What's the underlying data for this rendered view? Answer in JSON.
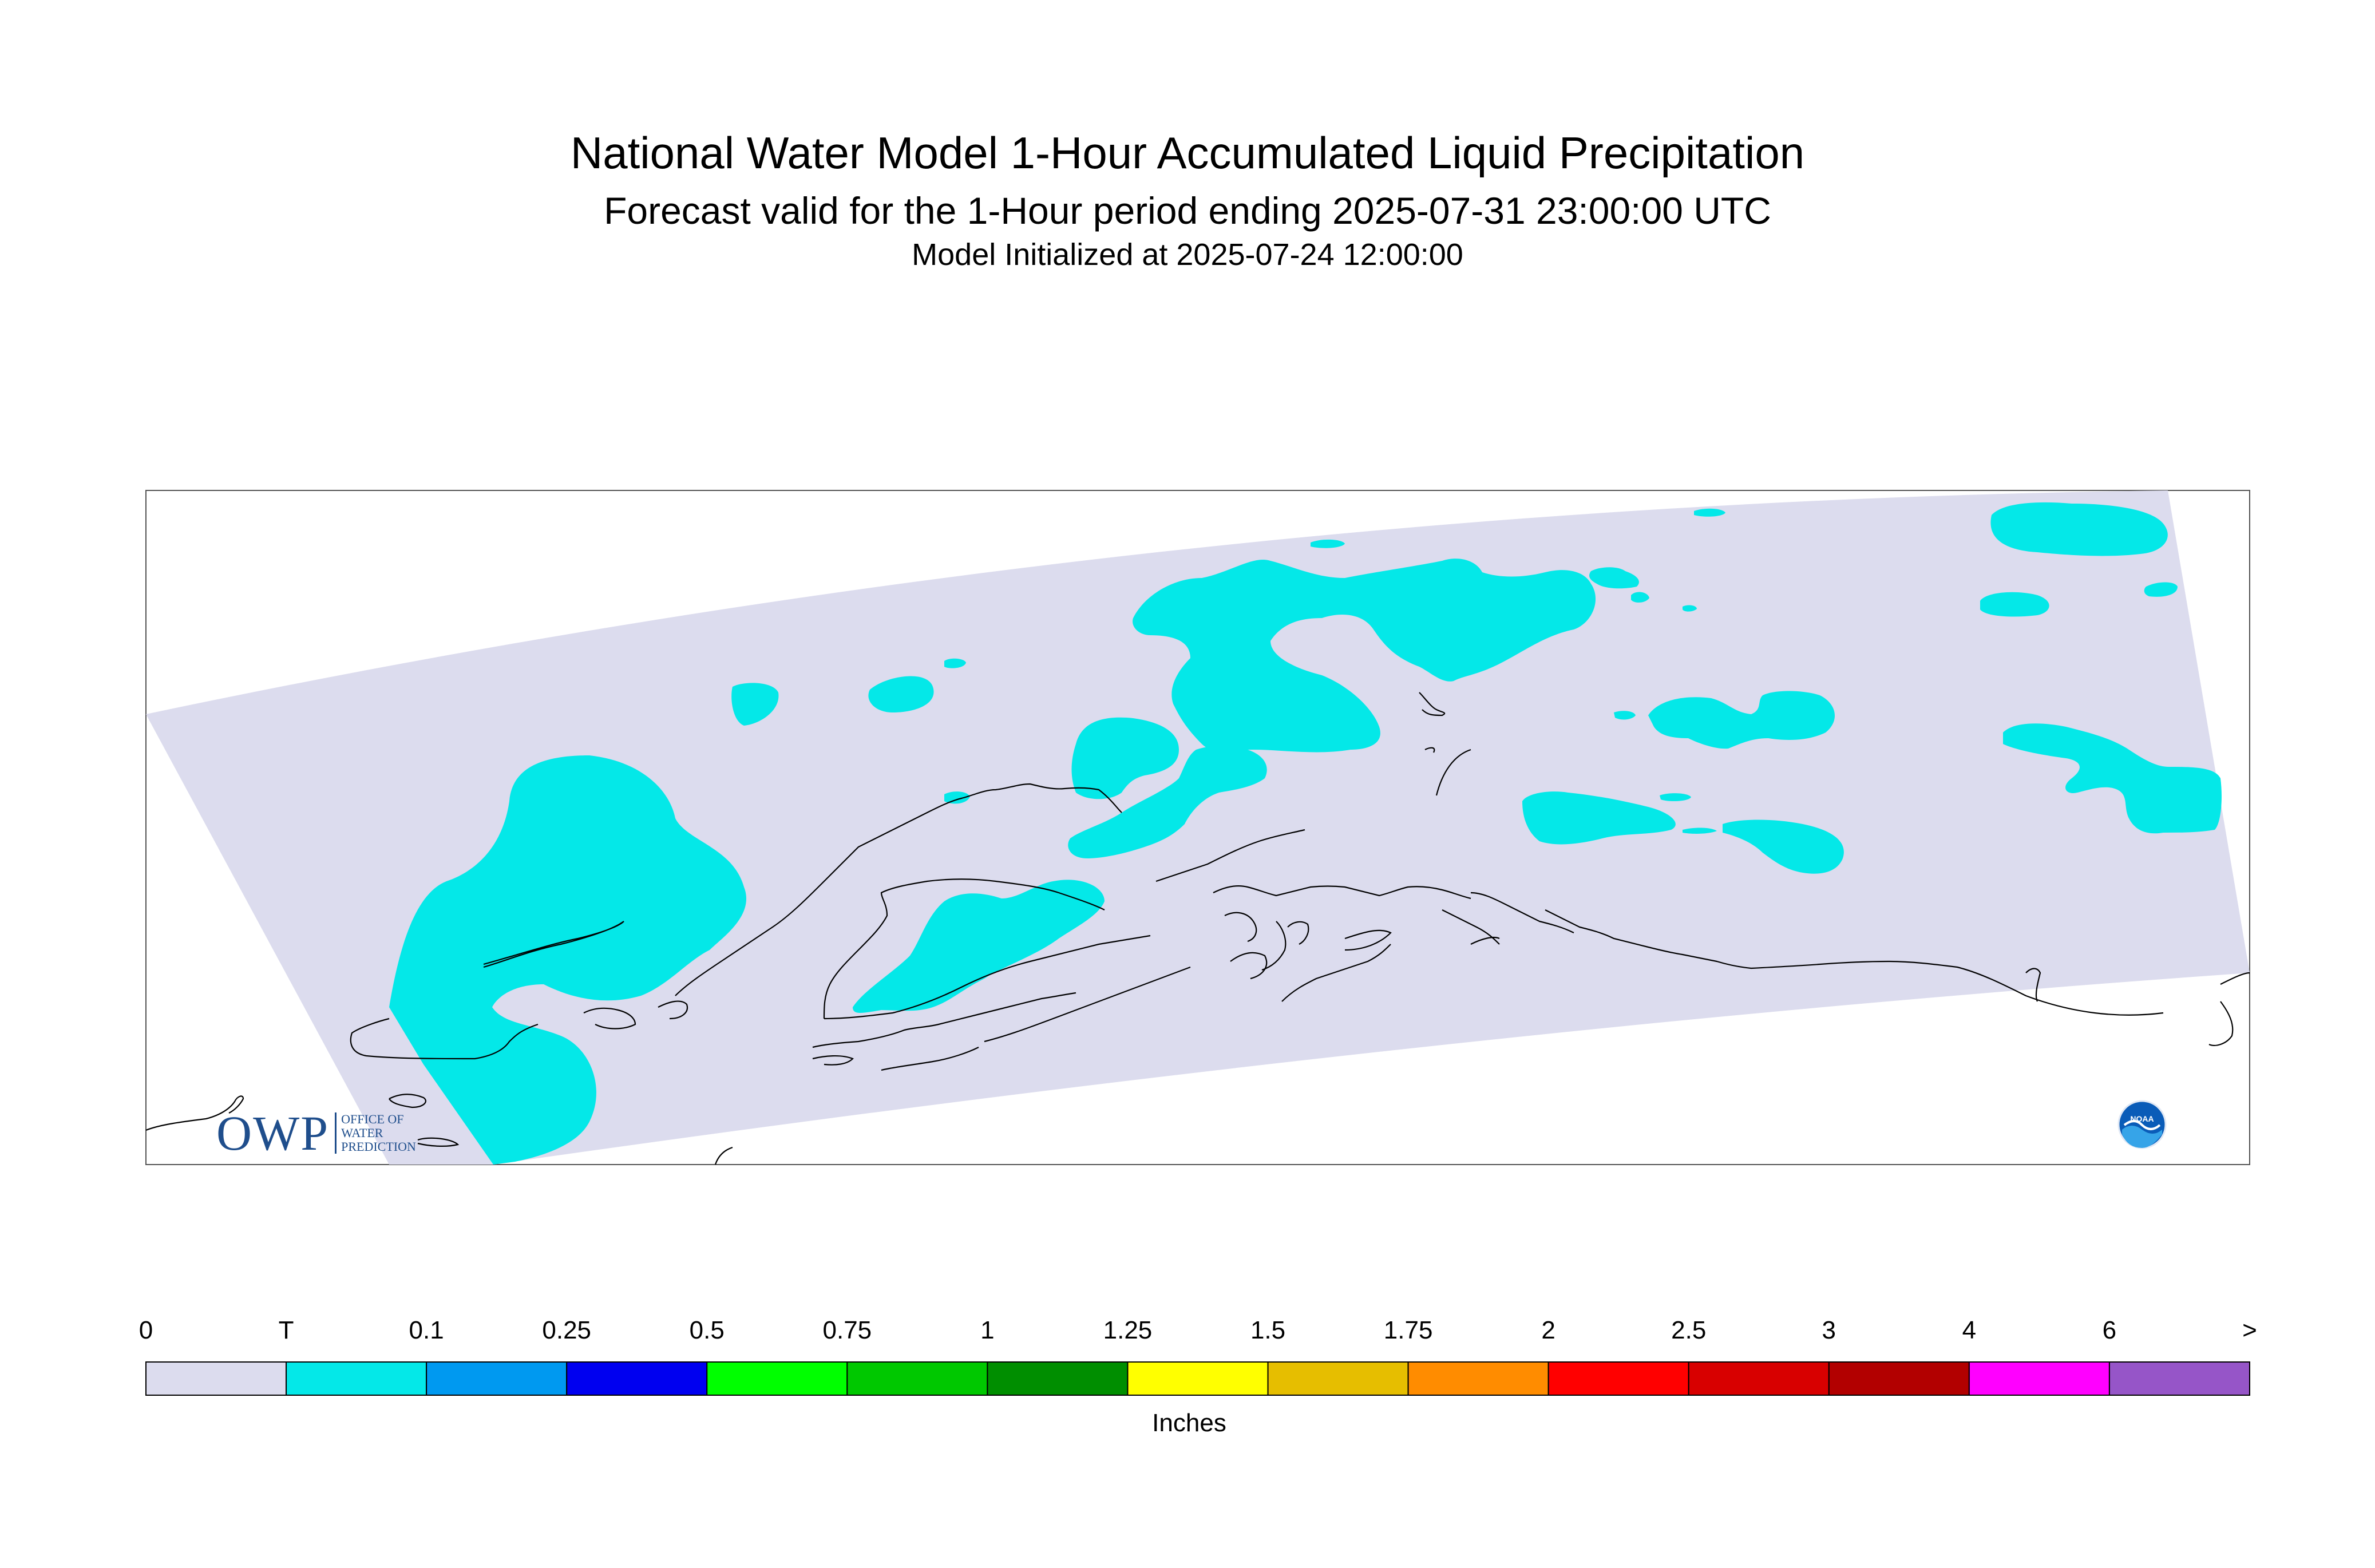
{
  "header": {
    "title": "National Water Model 1-Hour Accumulated Liquid Precipitation",
    "subtitle": "Forecast valid for the 1-Hour period ending 2025-07-31 23:00:00 UTC",
    "initialized": "Model Initialized at 2025-07-24 12:00:00"
  },
  "map": {
    "domain_color": "#dcdcee",
    "precip_color": "#04e8e8",
    "coast_color": "#000000"
  },
  "legend": {
    "labels": [
      "0",
      "T",
      "0.1",
      "0.25",
      "0.5",
      "0.75",
      "1",
      "1.25",
      "1.5",
      "1.75",
      "2",
      "2.5",
      "3",
      "4",
      "6",
      ">"
    ],
    "colors": [
      "#dcdcee",
      "#04e8e8",
      "#0099f0",
      "#0000f0",
      "#00ff00",
      "#00c800",
      "#008e00",
      "#ffff00",
      "#e6be00",
      "#ff8c00",
      "#ff0000",
      "#d80000",
      "#b20000",
      "#ff00ff",
      "#9655c8"
    ],
    "units": "Inches"
  },
  "logos": {
    "owp": {
      "mark": "OWP",
      "line1": "OFFICE OF",
      "line2": "WATER",
      "line3": "PREDICTION"
    },
    "noaa": {
      "text": "NOAA"
    }
  }
}
